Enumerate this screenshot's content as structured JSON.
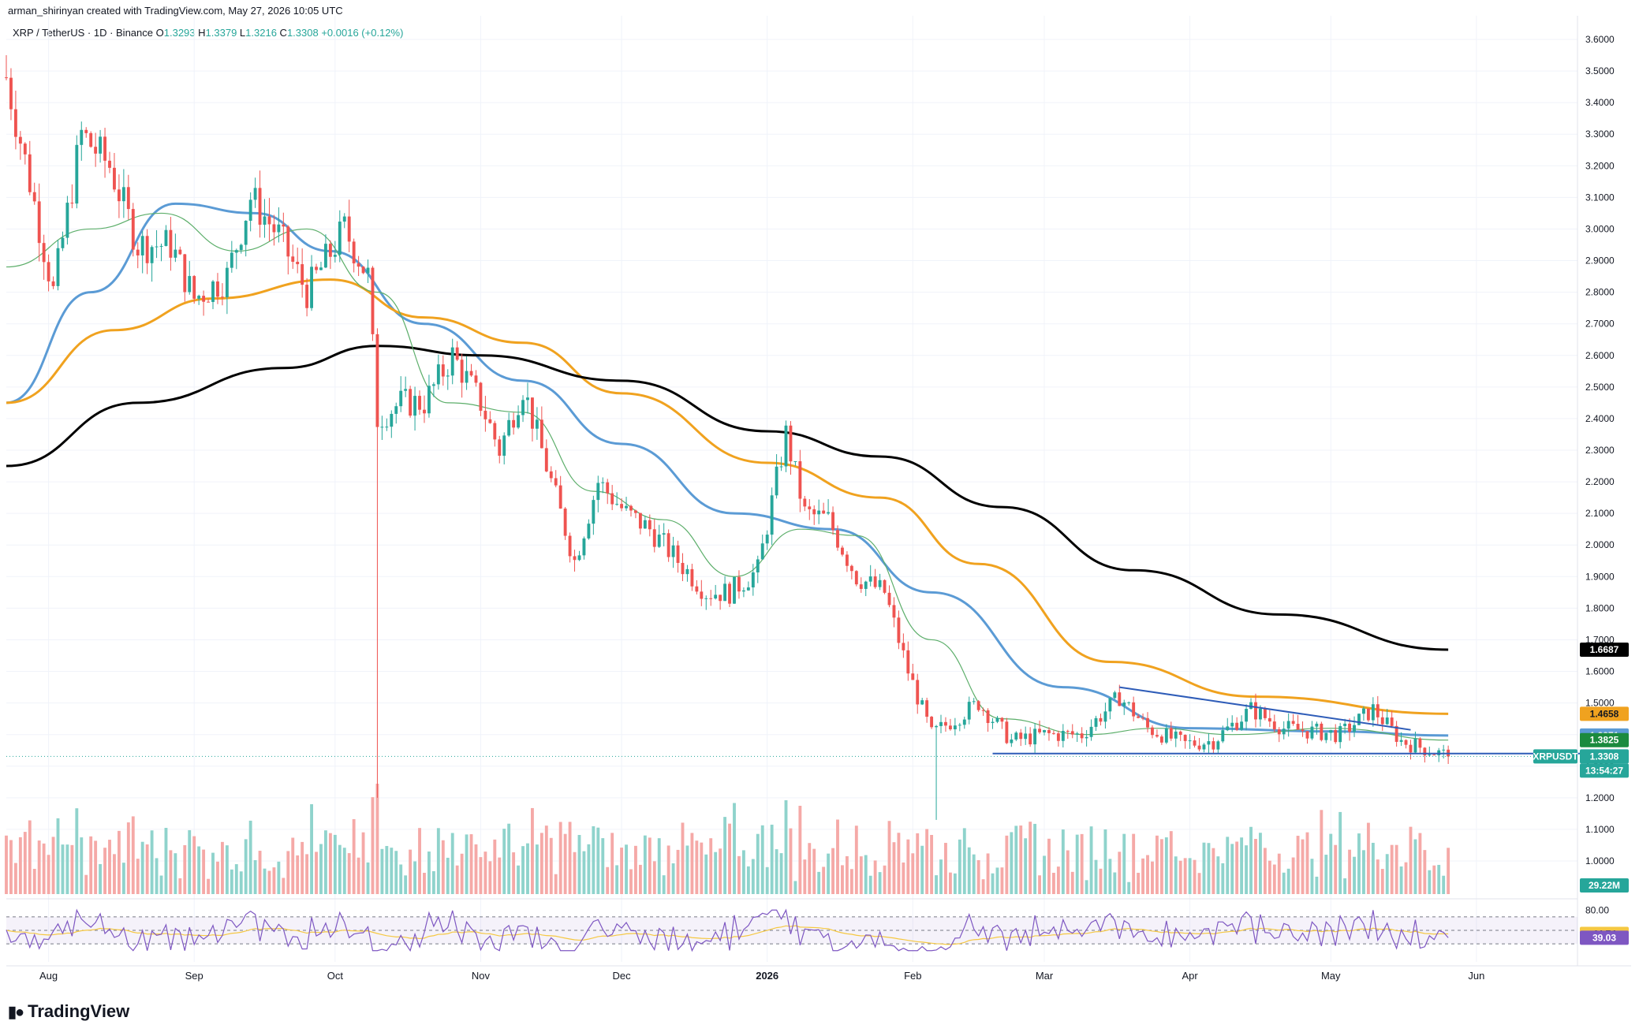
{
  "header": {
    "attribution": "arman_shirinyan created with TradingView.com, May 27, 2026 10:05 UTC"
  },
  "symbol_bar": {
    "symbol": "XRP / TetherUS · 1D · Binance",
    "open_label": "O",
    "open": "1.3293",
    "high_label": "H",
    "high": "1.3379",
    "low_label": "L",
    "low": "1.3216",
    "close_label": "C",
    "close": "1.3308",
    "change": "+0.0016 (+0.12%)"
  },
  "branding": {
    "logo_text": "TradingView",
    "logo_icon": "tradingview-logo-icon"
  },
  "colors": {
    "up": "#26a69a",
    "down": "#ef5350",
    "ma_blue": "#5b9bd5",
    "ma_orange": "#f0a21f",
    "ma_black": "#000000",
    "ma_green": "#5cae6a",
    "rsi": "#7e57c2",
    "rsi_ma": "#f5c842",
    "trendline": "#2e5cb8"
  },
  "price_axis": {
    "ticks": [
      "3.6000",
      "3.5000",
      "3.4000",
      "3.3000",
      "3.2000",
      "3.1000",
      "3.0000",
      "2.9000",
      "2.8000",
      "2.7000",
      "2.6000",
      "2.5000",
      "2.4000",
      "2.3000",
      "2.2000",
      "2.1000",
      "2.0000",
      "1.9000",
      "1.8000",
      "1.7000",
      "1.6000",
      "1.5000",
      "1.4000",
      "1.3000",
      "1.2000",
      "1.1000",
      "1.0000"
    ],
    "tags": [
      {
        "text": "1.6687",
        "value": 1.6687,
        "bg": "#000000",
        "fg": "#ffffff"
      },
      {
        "text": "1.4658",
        "value": 1.4658,
        "bg": "#f0a21f",
        "fg": "#131722"
      },
      {
        "text": "1.3971",
        "value": 1.3971,
        "bg": "#5b9bd5",
        "fg": "#ffffff"
      },
      {
        "text": "1.3825",
        "value": 1.3825,
        "bg": "#1b8a3e",
        "fg": "#ffffff"
      },
      {
        "text": "1.3308",
        "value": 1.3308,
        "bg": "#26a69a",
        "fg": "#ffffff"
      }
    ],
    "symbol_tag": "XRPUSDT",
    "countdown": "13:54:27",
    "volume_tag": "29.22M"
  },
  "rsi_axis": {
    "ticks": [
      "80.00"
    ],
    "tags": [
      {
        "text": "44.74",
        "value": 44.74,
        "bg": "#f5c842",
        "fg": "#131722"
      },
      {
        "text": "39.03",
        "value": 39.03,
        "bg": "#7e57c2",
        "fg": "#ffffff"
      }
    ]
  },
  "time_axis": {
    "labels": [
      "Aug",
      "Sep",
      "Oct",
      "Nov",
      "Dec",
      "2026",
      "Feb",
      "Mar",
      "Apr",
      "May",
      "Jun"
    ]
  },
  "chart_data": {
    "type": "candlestick",
    "title": "XRP / TetherUS · 1D · Binance",
    "ylim": [
      0.95,
      3.65
    ],
    "x_range": [
      "2025-07-23",
      "2026-06-20"
    ],
    "ohlc_anchors": [
      [
        "2025-07-23",
        3.48
      ],
      [
        "2025-07-28",
        3.15
      ],
      [
        "2025-08-02",
        2.8
      ],
      [
        "2025-08-08",
        3.3
      ],
      [
        "2025-08-14",
        3.2
      ],
      [
        "2025-08-20",
        2.95
      ],
      [
        "2025-08-27",
        2.95
      ],
      [
        "2025-09-01",
        2.78
      ],
      [
        "2025-09-08",
        2.85
      ],
      [
        "2025-09-13",
        3.1
      ],
      [
        "2025-09-19",
        2.98
      ],
      [
        "2025-09-25",
        2.8
      ],
      [
        "2025-10-03",
        3.0
      ],
      [
        "2025-10-08",
        2.85
      ],
      [
        "2025-10-10",
        2.4
      ],
      [
        "2025-10-15",
        2.45
      ],
      [
        "2025-10-20",
        2.45
      ],
      [
        "2025-10-26",
        2.6
      ],
      [
        "2025-11-01",
        2.45
      ],
      [
        "2025-11-05",
        2.3
      ],
      [
        "2025-11-10",
        2.5
      ],
      [
        "2025-11-16",
        2.2
      ],
      [
        "2025-11-21",
        1.95
      ],
      [
        "2025-11-26",
        2.2
      ],
      [
        "2025-12-02",
        2.1
      ],
      [
        "2025-12-07",
        2.05
      ],
      [
        "2025-12-13",
        1.95
      ],
      [
        "2025-12-19",
        1.85
      ],
      [
        "2025-12-24",
        1.85
      ],
      [
        "2025-12-30",
        1.92
      ],
      [
        "2026-01-05",
        2.35
      ],
      [
        "2026-01-09",
        2.1
      ],
      [
        "2026-01-14",
        2.08
      ],
      [
        "2026-01-20",
        1.9
      ],
      [
        "2026-01-26",
        1.85
      ],
      [
        "2026-01-31",
        1.6
      ],
      [
        "2026-02-05",
        1.4
      ],
      [
        "2026-02-10",
        1.45
      ],
      [
        "2026-02-15",
        1.5
      ],
      [
        "2026-02-22",
        1.38
      ],
      [
        "2026-03-01",
        1.4
      ],
      [
        "2026-03-09",
        1.4
      ],
      [
        "2026-03-17",
        1.52
      ],
      [
        "2026-03-23",
        1.42
      ],
      [
        "2026-03-31",
        1.37
      ],
      [
        "2026-04-06",
        1.38
      ],
      [
        "2026-04-14",
        1.48
      ],
      [
        "2026-04-21",
        1.42
      ],
      [
        "2026-04-27",
        1.41
      ],
      [
        "2026-05-03",
        1.4
      ],
      [
        "2026-05-10",
        1.48
      ],
      [
        "2026-05-16",
        1.38
      ],
      [
        "2026-05-26",
        1.3308
      ]
    ],
    "spikes": [
      {
        "date": "2025-10-10",
        "low": 1.2
      },
      {
        "date": "2026-02-06",
        "low": 1.13
      },
      {
        "date": "2025-07-23",
        "high": 3.55
      }
    ],
    "series": [
      {
        "name": "",
        "color": "#5b9bd5",
        "type": "ma",
        "points": [
          [
            "2025-07-23",
            2.45
          ],
          [
            "2025-08-10",
            2.8
          ],
          [
            "2025-08-28",
            3.08
          ],
          [
            "2025-09-14",
            3.05
          ],
          [
            "2025-09-30",
            2.93
          ],
          [
            "2025-10-20",
            2.7
          ],
          [
            "2025-11-10",
            2.52
          ],
          [
            "2025-12-01",
            2.32
          ],
          [
            "2025-12-25",
            2.1
          ],
          [
            "2026-01-15",
            2.05
          ],
          [
            "2026-02-05",
            1.85
          ],
          [
            "2026-03-05",
            1.55
          ],
          [
            "2026-04-01",
            1.42
          ],
          [
            "2026-05-01",
            1.41
          ],
          [
            "2026-05-26",
            1.3971
          ]
        ]
      },
      {
        "name": "",
        "color": "#f0a21f",
        "type": "ma",
        "points": [
          [
            "2025-07-23",
            2.45
          ],
          [
            "2025-08-15",
            2.68
          ],
          [
            "2025-09-05",
            2.78
          ],
          [
            "2025-09-30",
            2.84
          ],
          [
            "2025-10-20",
            2.72
          ],
          [
            "2025-11-10",
            2.64
          ],
          [
            "2025-12-01",
            2.48
          ],
          [
            "2026-01-01",
            2.26
          ],
          [
            "2026-01-25",
            2.15
          ],
          [
            "2026-02-15",
            1.94
          ],
          [
            "2026-03-15",
            1.63
          ],
          [
            "2026-04-15",
            1.52
          ],
          [
            "2026-05-26",
            1.4658
          ]
        ]
      },
      {
        "name": "",
        "color": "#000000",
        "type": "ma",
        "points": [
          [
            "2025-07-23",
            2.25
          ],
          [
            "2025-08-20",
            2.45
          ],
          [
            "2025-09-20",
            2.56
          ],
          [
            "2025-10-10",
            2.63
          ],
          [
            "2025-11-01",
            2.6
          ],
          [
            "2025-12-01",
            2.52
          ],
          [
            "2026-01-01",
            2.36
          ],
          [
            "2026-01-25",
            2.28
          ],
          [
            "2026-02-20",
            2.12
          ],
          [
            "2026-03-20",
            1.92
          ],
          [
            "2026-04-20",
            1.78
          ],
          [
            "2026-05-26",
            1.6687
          ]
        ]
      },
      {
        "name": "",
        "color": "#5cae6a",
        "type": "ma",
        "points": [
          [
            "2025-07-23",
            2.88
          ],
          [
            "2025-08-10",
            3.0
          ],
          [
            "2025-08-25",
            3.05
          ],
          [
            "2025-09-10",
            2.93
          ],
          [
            "2025-09-25",
            3.0
          ],
          [
            "2025-10-10",
            2.8
          ],
          [
            "2025-10-25",
            2.45
          ],
          [
            "2025-11-10",
            2.42
          ],
          [
            "2025-11-25",
            2.17
          ],
          [
            "2025-12-10",
            2.08
          ],
          [
            "2025-12-25",
            1.9
          ],
          [
            "2026-01-08",
            2.05
          ],
          [
            "2026-01-20",
            2.03
          ],
          [
            "2026-02-05",
            1.7
          ],
          [
            "2026-02-20",
            1.45
          ],
          [
            "2026-03-10",
            1.4
          ],
          [
            "2026-03-25",
            1.42
          ],
          [
            "2026-04-10",
            1.4
          ],
          [
            "2026-05-01",
            1.42
          ],
          [
            "2026-05-26",
            1.3825
          ]
        ]
      }
    ],
    "trendlines": [
      {
        "from": [
          "2026-03-17",
          1.55
        ],
        "to": [
          "2026-05-18",
          1.415
        ]
      },
      {
        "from": [
          "2026-02-18",
          1.34
        ],
        "to": [
          "2026-06-25",
          1.34
        ]
      }
    ],
    "current_price": 1.3308,
    "volume": {
      "last": "29.22M"
    },
    "rsi": {
      "ticks": [
        80
      ],
      "levels": [
        70,
        50,
        30
      ],
      "last_rsi": 39.03,
      "last_rsi_ma": 44.74
    }
  }
}
